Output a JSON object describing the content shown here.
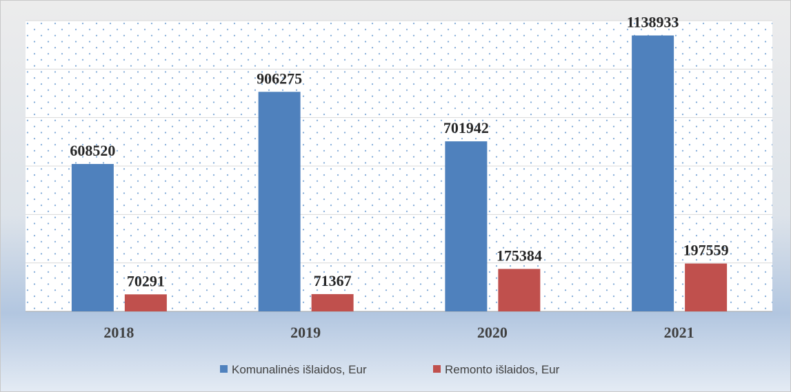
{
  "chart_data": {
    "type": "bar",
    "categories": [
      "2018",
      "2019",
      "2020",
      "2021"
    ],
    "series": [
      {
        "name": "Komunalinės išlaidos, Eur",
        "color": "#4f81bd",
        "values": [
          608520,
          906275,
          701942,
          1138933
        ]
      },
      {
        "name": "Remonto išlaidos, Eur",
        "color": "#c0504d",
        "values": [
          70291,
          71367,
          175384,
          197559
        ]
      }
    ],
    "ylim": [
      0,
      1200000
    ],
    "yticks": [
      0,
      200000,
      400000,
      600000,
      800000,
      1000000,
      1200000
    ],
    "grid": true,
    "legend": "bottom"
  }
}
